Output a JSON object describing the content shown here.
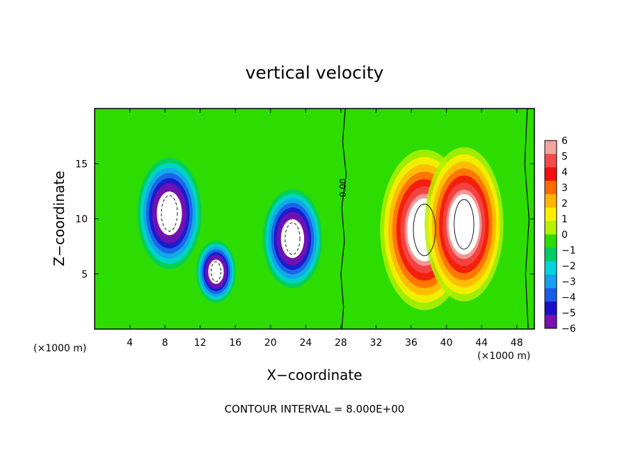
{
  "chart_data": {
    "type": "heatmap",
    "title": "vertical velocity",
    "xlabel": "X−coordinate",
    "ylabel": "Z−coordinate",
    "x_unit_label": "(×1000 m)",
    "x_ticks": [
      4,
      8,
      12,
      16,
      20,
      24,
      28,
      32,
      36,
      40,
      44,
      48
    ],
    "y_ticks": [
      5,
      10,
      15
    ],
    "xlim": [
      0,
      50
    ],
    "ylim": [
      0,
      20
    ],
    "colorbar": {
      "levels": [
        6,
        5,
        4,
        3,
        2,
        1,
        0,
        -1,
        -2,
        -3,
        -4,
        -5,
        -6
      ],
      "labels": [
        "6",
        "5",
        "4",
        "3",
        "2",
        "1",
        "0",
        "−1",
        "−2",
        "−3",
        "−4",
        "−5",
        "−6"
      ],
      "colors": [
        "#f4a3a3",
        "#f24a4a",
        "#f20f0f",
        "#ff6a00",
        "#ffb400",
        "#ffee00",
        "#b4f000",
        "#2ddc00",
        "#00cc66",
        "#00d4dc",
        "#16a0ee",
        "#1a5ce8",
        "#1a10c8",
        "#7a10b0"
      ]
    },
    "contour_label": "0.00",
    "contour_interval_text": "CONTOUR INTERVAL = 8.000E+00",
    "features": [
      {
        "kind": "downdraft",
        "x": 8.5,
        "z": 10.5,
        "rx": 2.6,
        "rz": 3.6,
        "strength": -1.0
      },
      {
        "kind": "downdraft",
        "x": 13.8,
        "z": 5.2,
        "rx": 1.6,
        "rz": 2.0,
        "strength": -0.95
      },
      {
        "kind": "downdraft",
        "x": 22.5,
        "z": 8.2,
        "rx": 2.4,
        "rz": 3.2,
        "strength": -1.0
      },
      {
        "kind": "updraft",
        "x": 37.5,
        "z": 9.0,
        "rx": 3.6,
        "rz": 5.2,
        "strength": 1.0
      },
      {
        "kind": "updraft",
        "x": 42.0,
        "z": 9.5,
        "rx": 3.2,
        "rz": 5.0,
        "strength": 1.0
      }
    ]
  }
}
